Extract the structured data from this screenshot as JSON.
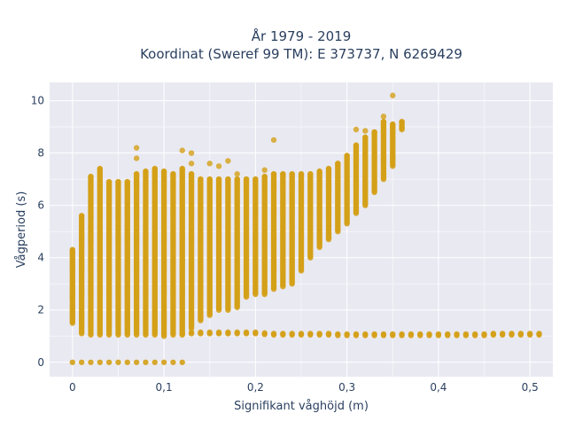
{
  "chart_data": {
    "type": "scatter",
    "title_line1": "År 1979 - 2019",
    "title_line2": "Koordinat (Sweref 99 TM): E 373737, N 6269429",
    "xlabel": "Signifikant våghöjd (m)",
    "ylabel": "Vågperiod (s)",
    "xlim": [
      -0.025,
      0.525
    ],
    "ylim": [
      -0.55,
      10.7
    ],
    "x_ticks": [
      0,
      0.1,
      0.2,
      0.3,
      0.4,
      0.5
    ],
    "x_tick_labels": [
      "0",
      "0,1",
      "0,2",
      "0,3",
      "0,4",
      "0,5"
    ],
    "y_ticks": [
      0,
      2,
      4,
      6,
      8,
      10
    ],
    "y_tick_labels": [
      "0",
      "2",
      "4",
      "6",
      "8",
      "10"
    ],
    "grid": true,
    "marker_color": "#d4a017",
    "background_color": "#e9e9f2",
    "columns": [
      {
        "x": 0.0,
        "ymin": 1.5,
        "ymax": 4.3
      },
      {
        "x": 0.01,
        "ymin": 1.1,
        "ymax": 5.6
      },
      {
        "x": 0.02,
        "ymin": 1.05,
        "ymax": 7.1
      },
      {
        "x": 0.03,
        "ymin": 1.05,
        "ymax": 7.4
      },
      {
        "x": 0.04,
        "ymin": 1.05,
        "ymax": 6.9
      },
      {
        "x": 0.05,
        "ymin": 1.05,
        "ymax": 6.9
      },
      {
        "x": 0.06,
        "ymin": 1.05,
        "ymax": 6.9
      },
      {
        "x": 0.07,
        "ymin": 1.05,
        "ymax": 7.2
      },
      {
        "x": 0.08,
        "ymin": 1.05,
        "ymax": 7.3
      },
      {
        "x": 0.09,
        "ymin": 1.05,
        "ymax": 7.4
      },
      {
        "x": 0.1,
        "ymin": 1.0,
        "ymax": 7.3
      },
      {
        "x": 0.11,
        "ymin": 1.05,
        "ymax": 7.2
      },
      {
        "x": 0.12,
        "ymin": 1.1,
        "ymax": 7.4
      },
      {
        "x": 0.13,
        "ymin": 1.3,
        "ymax": 7.2
      },
      {
        "x": 0.14,
        "ymin": 1.6,
        "ymax": 7.0
      },
      {
        "x": 0.15,
        "ymin": 1.8,
        "ymax": 7.0
      },
      {
        "x": 0.16,
        "ymin": 2.0,
        "ymax": 7.0
      },
      {
        "x": 0.17,
        "ymin": 2.0,
        "ymax": 7.0
      },
      {
        "x": 0.18,
        "ymin": 2.1,
        "ymax": 7.0
      },
      {
        "x": 0.19,
        "ymin": 2.5,
        "ymax": 7.0
      },
      {
        "x": 0.2,
        "ymin": 2.6,
        "ymax": 7.0
      },
      {
        "x": 0.21,
        "ymin": 2.6,
        "ymax": 7.1
      },
      {
        "x": 0.22,
        "ymin": 2.8,
        "ymax": 7.2
      },
      {
        "x": 0.23,
        "ymin": 2.9,
        "ymax": 7.2
      },
      {
        "x": 0.24,
        "ymin": 3.0,
        "ymax": 7.2
      },
      {
        "x": 0.25,
        "ymin": 3.5,
        "ymax": 7.2
      },
      {
        "x": 0.26,
        "ymin": 4.0,
        "ymax": 7.2
      },
      {
        "x": 0.27,
        "ymin": 4.4,
        "ymax": 7.3
      },
      {
        "x": 0.28,
        "ymin": 4.7,
        "ymax": 7.4
      },
      {
        "x": 0.29,
        "ymin": 5.0,
        "ymax": 7.6
      },
      {
        "x": 0.3,
        "ymin": 5.3,
        "ymax": 7.9
      },
      {
        "x": 0.31,
        "ymin": 5.7,
        "ymax": 8.3
      },
      {
        "x": 0.32,
        "ymin": 6.0,
        "ymax": 8.6
      },
      {
        "x": 0.33,
        "ymin": 6.5,
        "ymax": 8.8
      },
      {
        "x": 0.34,
        "ymin": 7.0,
        "ymax": 9.2
      },
      {
        "x": 0.35,
        "ymin": 7.5,
        "ymax": 9.1
      },
      {
        "x": 0.36,
        "ymin": 8.9,
        "ymax": 9.2
      }
    ],
    "zero_row": {
      "y": 0,
      "x": [
        0.0,
        0.01,
        0.02,
        0.03,
        0.04,
        0.05,
        0.06,
        0.07,
        0.08,
        0.09,
        0.1,
        0.11,
        0.12
      ]
    },
    "lower_band": {
      "x": [
        0.12,
        0.13,
        0.14,
        0.15,
        0.16,
        0.17,
        0.18,
        0.19,
        0.2,
        0.21,
        0.22,
        0.23,
        0.24,
        0.25,
        0.26,
        0.27,
        0.28,
        0.29,
        0.3,
        0.31,
        0.32,
        0.33,
        0.34,
        0.35,
        0.36,
        0.37,
        0.38,
        0.39,
        0.4,
        0.41,
        0.42,
        0.43,
        0.44,
        0.45,
        0.46,
        0.47,
        0.48,
        0.49,
        0.5,
        0.51
      ],
      "y": [
        1.1,
        1.15,
        1.15,
        1.15,
        1.15,
        1.15,
        1.15,
        1.15,
        1.15,
        1.12,
        1.1,
        1.1,
        1.1,
        1.1,
        1.1,
        1.1,
        1.1,
        1.08,
        1.08,
        1.08,
        1.08,
        1.08,
        1.08,
        1.08,
        1.08,
        1.08,
        1.08,
        1.08,
        1.08,
        1.08,
        1.08,
        1.08,
        1.08,
        1.08,
        1.1,
        1.1,
        1.1,
        1.1,
        1.1,
        1.1
      ]
    },
    "outliers": [
      {
        "x": 0.0,
        "y": 2.5
      },
      {
        "x": 0.0,
        "y": 2.0
      },
      {
        "x": 0.0,
        "y": 4.2
      },
      {
        "x": 0.07,
        "y": 8.2
      },
      {
        "x": 0.07,
        "y": 7.8
      },
      {
        "x": 0.12,
        "y": 8.1
      },
      {
        "x": 0.13,
        "y": 8.0
      },
      {
        "x": 0.13,
        "y": 7.6
      },
      {
        "x": 0.15,
        "y": 7.6
      },
      {
        "x": 0.16,
        "y": 7.5
      },
      {
        "x": 0.17,
        "y": 7.7
      },
      {
        "x": 0.18,
        "y": 7.2
      },
      {
        "x": 0.22,
        "y": 8.5
      },
      {
        "x": 0.21,
        "y": 7.35
      },
      {
        "x": 0.31,
        "y": 8.9
      },
      {
        "x": 0.32,
        "y": 8.85
      },
      {
        "x": 0.34,
        "y": 9.4
      },
      {
        "x": 0.35,
        "y": 10.2
      },
      {
        "x": 0.35,
        "y": 9.0
      },
      {
        "x": 0.36,
        "y": 8.95
      }
    ]
  }
}
